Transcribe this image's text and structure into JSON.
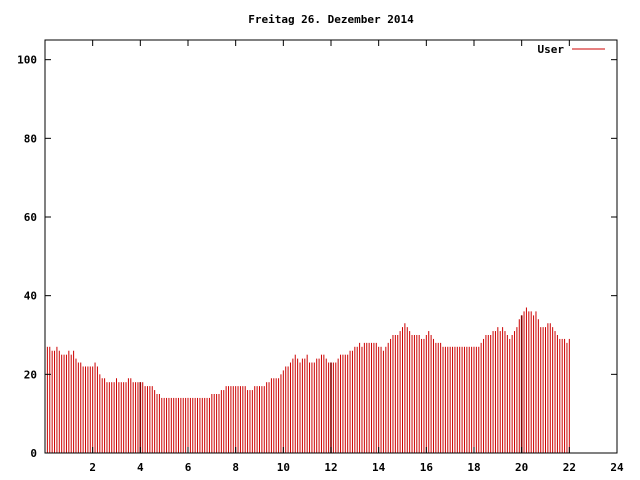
{
  "chart_data": {
    "type": "bar",
    "title": "Freitag 26. Dezember 2014",
    "xlabel": "",
    "ylabel": "",
    "xlim": [
      0,
      24
    ],
    "ylim": [
      0,
      105
    ],
    "xticks": [
      2,
      4,
      6,
      8,
      10,
      12,
      14,
      16,
      18,
      20,
      22,
      24
    ],
    "yticks": [
      0,
      20,
      40,
      60,
      80,
      100
    ],
    "grid": false,
    "legend_position": "top-right",
    "series": [
      {
        "name": "User",
        "color": "#cc0000",
        "x_start": 0,
        "x_step": 0.1,
        "values": [
          28,
          27,
          27,
          26,
          26,
          27,
          26,
          25,
          25,
          25,
          26,
          25,
          26,
          24,
          23,
          23,
          22,
          22,
          22,
          22,
          22,
          23,
          22,
          20,
          19,
          19,
          18,
          18,
          18,
          18,
          19,
          18,
          18,
          18,
          18,
          19,
          19,
          18,
          18,
          18,
          18,
          18,
          17,
          17,
          17,
          17,
          16,
          15,
          15,
          14,
          14,
          14,
          14,
          14,
          14,
          14,
          14,
          14,
          14,
          14,
          14,
          14,
          14,
          14,
          14,
          14,
          14,
          14,
          14,
          14,
          15,
          15,
          15,
          15,
          16,
          16,
          17,
          17,
          17,
          17,
          17,
          17,
          17,
          17,
          17,
          16,
          16,
          16,
          17,
          17,
          17,
          17,
          17,
          18,
          18,
          19,
          19,
          19,
          19,
          20,
          21,
          22,
          22,
          23,
          24,
          25,
          24,
          23,
          24,
          24,
          25,
          23,
          23,
          23,
          24,
          24,
          25,
          25,
          24,
          23,
          23,
          23,
          23,
          24,
          25,
          25,
          25,
          25,
          26,
          26,
          27,
          27,
          28,
          27,
          28,
          28,
          28,
          28,
          28,
          28,
          27,
          27,
          26,
          27,
          28,
          29,
          30,
          30,
          30,
          31,
          32,
          33,
          32,
          31,
          30,
          30,
          30,
          30,
          29,
          29,
          30,
          31,
          30,
          29,
          28,
          28,
          28,
          27,
          27,
          27,
          27,
          27,
          27,
          27,
          27,
          27,
          27,
          27,
          27,
          27,
          27,
          27,
          27,
          28,
          29,
          30,
          30,
          30,
          31,
          31,
          32,
          31,
          32,
          31,
          30,
          29,
          30,
          31,
          32,
          34,
          35,
          36,
          37,
          36,
          36,
          35,
          36,
          34,
          32,
          32,
          32,
          33,
          33,
          32,
          31,
          30,
          29,
          29,
          29,
          28,
          29
        ],
        "highlighted_x": [
          4,
          12,
          20
        ]
      }
    ]
  }
}
